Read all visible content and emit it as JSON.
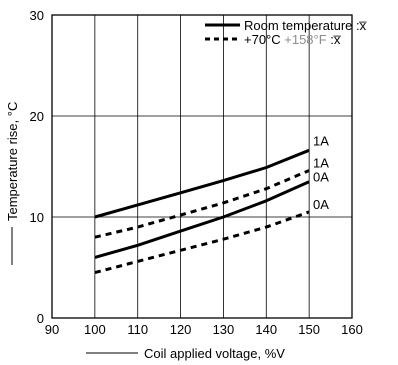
{
  "chart_data": {
    "type": "line",
    "xlabel": "Coil applied voltage, %V",
    "ylabel": "Temperature rise, °C",
    "xlim": [
      90,
      160
    ],
    "ylim": [
      0,
      30
    ],
    "x_ticks": [
      "90",
      "100",
      "110",
      "120",
      "130",
      "140",
      "150",
      "160"
    ],
    "y_ticks": [
      "0",
      "10",
      "20",
      "30"
    ],
    "grid": true,
    "legend_position": "top-right",
    "legend": [
      {
        "style": "solid",
        "text": "Room temperature :x̅"
      },
      {
        "style": "dashed",
        "text_parts": [
          "+70°C",
          " +158°F",
          " :x̅"
        ]
      }
    ],
    "series": [
      {
        "label": "1A",
        "style": "solid",
        "x": [
          100,
          110,
          120,
          130,
          140,
          150
        ],
        "y": [
          10.0,
          11.2,
          12.4,
          13.6,
          14.9,
          16.6
        ]
      },
      {
        "label": "1A",
        "style": "dashed",
        "x": [
          100,
          110,
          120,
          130,
          140,
          150
        ],
        "y": [
          8.0,
          9.0,
          10.2,
          11.4,
          12.8,
          14.6
        ]
      },
      {
        "label": "0A",
        "style": "solid",
        "x": [
          100,
          110,
          120,
          130,
          140,
          150
        ],
        "y": [
          6.0,
          7.2,
          8.6,
          10.0,
          11.6,
          13.5
        ]
      },
      {
        "label": "0A",
        "style": "dashed",
        "x": [
          100,
          110,
          120,
          130,
          140,
          150
        ],
        "y": [
          4.5,
          5.6,
          6.7,
          7.8,
          9.0,
          10.5
        ]
      }
    ],
    "colors": {
      "line": "#000000",
      "legend_accent": "#8c8c8c"
    }
  }
}
